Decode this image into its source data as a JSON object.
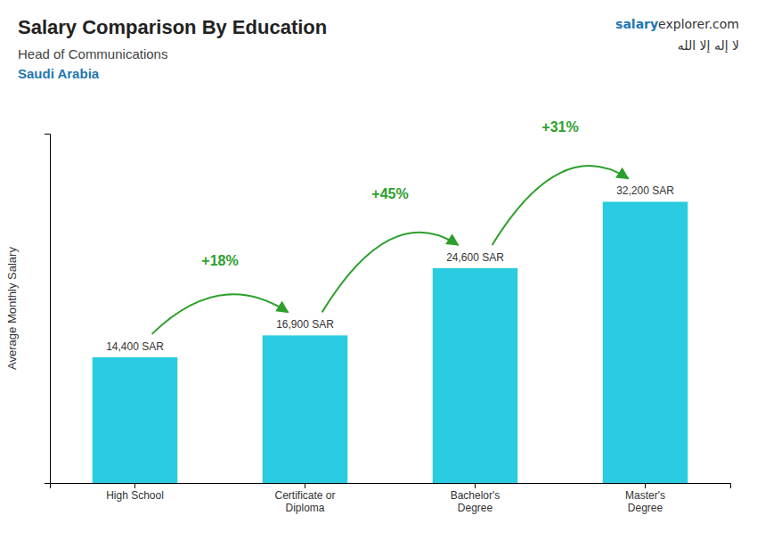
{
  "chart_data": {
    "type": "bar",
    "title": "Salary Comparison By Education",
    "subtitle": [
      "Head of Communications",
      "Saudi Arabia"
    ],
    "ylabel": "Average Monthly Salary",
    "categories": [
      "High School",
      "Certificate or\nDiploma",
      "Bachelor's\nDegree",
      "Master's\nDegree"
    ],
    "values": [
      14400,
      16900,
      24600,
      32200
    ],
    "value_labels": [
      "14,400 SAR",
      "16,900 SAR",
      "24,600 SAR",
      "32,200 SAR"
    ],
    "data_labels": true,
    "color": "#29cce0",
    "ylim": [
      0,
      40000
    ],
    "grid": false,
    "tick_labels": "x",
    "annotations": [
      {
        "text": "+18%",
        "between": [
          0,
          1
        ]
      },
      {
        "text": "+45%",
        "between": [
          1,
          2
        ]
      },
      {
        "text": "+31%",
        "between": [
          2,
          3
        ]
      },
      {
        "text": [
          "salary",
          "explorer.com"
        ]
      },
      {
        "text": "لا إله إلا الله"
      }
    ]
  }
}
